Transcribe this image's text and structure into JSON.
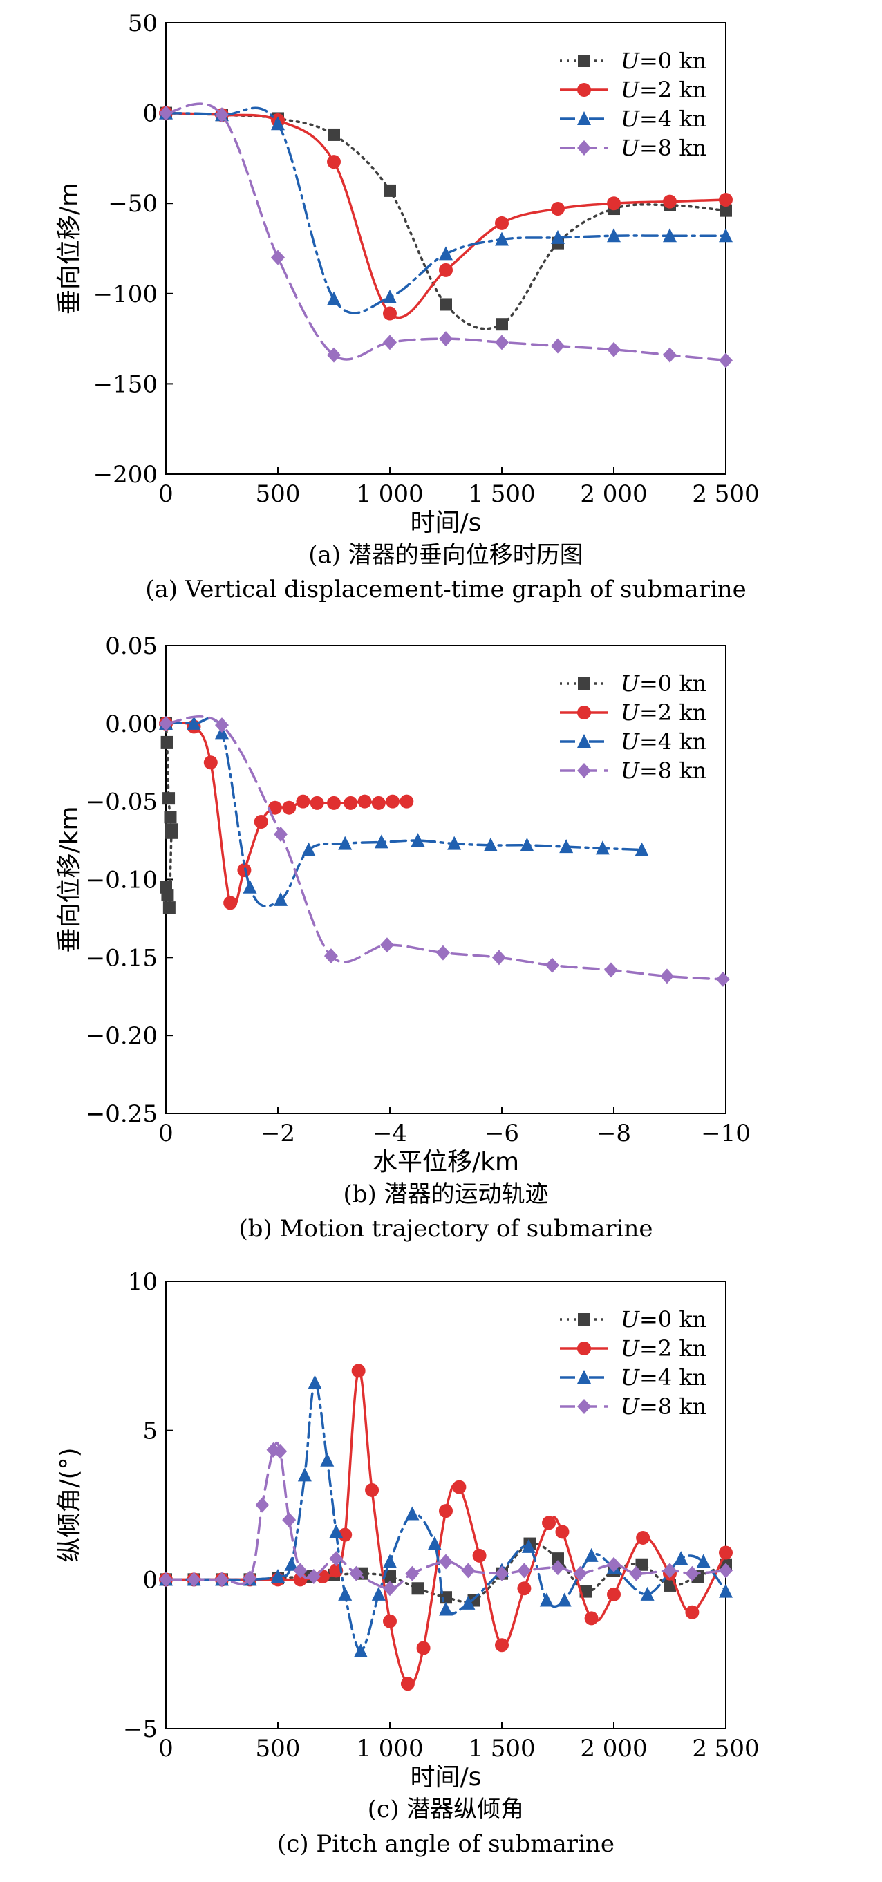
{
  "chart_data": [
    {
      "type": "line",
      "title": "",
      "caption_cn": "(a) 潜器的垂向位移时历图",
      "caption_en": "(a) Vertical displacement-time graph of submarine",
      "xlabel": "时间/s",
      "ylabel": "垂向位移/m",
      "xlim": [
        0,
        2500
      ],
      "ylim": [
        -200,
        50
      ],
      "xticks": [
        0,
        500,
        1000,
        1500,
        2000,
        2500
      ],
      "xtick_labels": [
        "0",
        "500",
        "1 000",
        "1 500",
        "2 000",
        "2 500"
      ],
      "yticks": [
        50,
        0,
        -50,
        -100,
        -150,
        -200
      ],
      "ytick_labels": [
        "50",
        "0",
        "−50",
        "−100",
        "−150",
        "−200"
      ],
      "legend_position": "top-right",
      "grid": false,
      "series": [
        {
          "name": "U=0 kn",
          "color": "#404040",
          "dash": "dot",
          "marker": "square",
          "x": [
            0,
            250,
            500,
            750,
            1000,
            1250,
            1500,
            1750,
            2000,
            2250,
            2500
          ],
          "y": [
            0,
            -1,
            -3,
            -12,
            -43,
            -106,
            -117,
            -72,
            -53,
            -51,
            -54
          ]
        },
        {
          "name": "U=2 kn",
          "color": "#e03030",
          "dash": "solid",
          "marker": "circle",
          "x": [
            0,
            250,
            500,
            750,
            1000,
            1250,
            1500,
            1750,
            2000,
            2250,
            2500
          ],
          "y": [
            0,
            -1,
            -4,
            -27,
            -111,
            -87,
            -61,
            -53,
            -50,
            -49,
            -48
          ]
        },
        {
          "name": "U=4 kn",
          "color": "#2060b0",
          "dash": "dashdot",
          "marker": "triangle",
          "x": [
            0,
            250,
            500,
            750,
            1000,
            1250,
            1500,
            1750,
            2000,
            2250,
            2500
          ],
          "y": [
            0,
            -1,
            -6,
            -103,
            -102,
            -78,
            -70,
            -69,
            -68,
            -68,
            -68
          ]
        },
        {
          "name": "U=8 kn",
          "color": "#9a70c0",
          "dash": "dash",
          "marker": "diamond",
          "x": [
            0,
            250,
            500,
            750,
            1000,
            1250,
            1500,
            1750,
            2000,
            2250,
            2500
          ],
          "y": [
            0,
            -1,
            -80,
            -134,
            -127,
            -125,
            -127,
            -129,
            -131,
            -134,
            -137
          ]
        }
      ]
    },
    {
      "type": "line",
      "title": "",
      "caption_cn": "(b) 潜器的运动轨迹",
      "caption_en": "(b) Motion trajectory of submarine",
      "xlabel": "水平位移/km",
      "ylabel": "垂向位移/km",
      "xlim": [
        0,
        -10
      ],
      "ylim": [
        -0.25,
        0.05
      ],
      "xticks": [
        0,
        -2,
        -4,
        -6,
        -8,
        -10
      ],
      "xtick_labels": [
        "0",
        "−2",
        "−4",
        "−6",
        "−8",
        "−10"
      ],
      "yticks": [
        0.05,
        0,
        -0.05,
        -0.1,
        -0.15,
        -0.2,
        -0.25
      ],
      "ytick_labels": [
        "0.05",
        "0.00",
        "−0.05",
        "−0.10",
        "−0.15",
        "−0.20",
        "−0.25"
      ],
      "legend_position": "top-right",
      "grid": false,
      "series": [
        {
          "name": "U=0 kn",
          "color": "#404040",
          "dash": "dot",
          "marker": "square",
          "x": [
            0,
            -0.02,
            -0.05,
            -0.08,
            -0.1,
            -0.1,
            -0.06,
            -0.03,
            0
          ],
          "y": [
            0,
            -0.012,
            -0.048,
            -0.06,
            -0.07,
            -0.068,
            -0.118,
            -0.11,
            -0.105
          ]
        },
        {
          "name": "U=2 kn",
          "color": "#e03030",
          "dash": "solid",
          "marker": "circle",
          "x": [
            0,
            -0.5,
            -0.8,
            -1.15,
            -1.4,
            -1.7,
            -1.95,
            -2.2,
            -2.45,
            -2.7,
            -3.0,
            -3.3,
            -3.55,
            -3.8,
            -4.05,
            -4.3
          ],
          "y": [
            0,
            -0.002,
            -0.025,
            -0.115,
            -0.094,
            -0.063,
            -0.054,
            -0.054,
            -0.05,
            -0.051,
            -0.051,
            -0.051,
            -0.05,
            -0.051,
            -0.05,
            -0.05
          ]
        },
        {
          "name": "U=4 kn",
          "color": "#2060b0",
          "dash": "dashdot",
          "marker": "triangle",
          "x": [
            0,
            -0.5,
            -1.0,
            -1.5,
            -2.05,
            -2.55,
            -3.2,
            -3.85,
            -4.5,
            -5.15,
            -5.8,
            -6.45,
            -7.15,
            -7.8,
            -8.5
          ],
          "y": [
            0,
            0,
            -0.006,
            -0.105,
            -0.113,
            -0.081,
            -0.077,
            -0.076,
            -0.075,
            -0.077,
            -0.078,
            -0.078,
            -0.079,
            -0.08,
            -0.081
          ]
        },
        {
          "name": "U=8 kn",
          "color": "#9a70c0",
          "dash": "dash",
          "marker": "diamond",
          "x": [
            0,
            -1.0,
            -2.05,
            -2.95,
            -3.95,
            -4.95,
            -5.95,
            -6.9,
            -7.95,
            -8.95,
            -9.95
          ],
          "y": [
            0,
            -0.001,
            -0.071,
            -0.149,
            -0.142,
            -0.147,
            -0.15,
            -0.155,
            -0.158,
            -0.162,
            -0.164
          ]
        }
      ]
    },
    {
      "type": "line",
      "title": "",
      "caption_cn": "(c) 潜器纵倾角",
      "caption_en": "(c) Pitch angle of submarine",
      "xlabel": "时间/s",
      "ylabel": "纵倾角/(°)",
      "xlim": [
        0,
        2500
      ],
      "ylim": [
        -5,
        10
      ],
      "xticks": [
        0,
        500,
        1000,
        1500,
        2000,
        2500
      ],
      "xtick_labels": [
        "0",
        "500",
        "1 000",
        "1 500",
        "2 000",
        "2 500"
      ],
      "yticks": [
        10,
        5,
        0,
        -5
      ],
      "ytick_labels": [
        "10",
        "5",
        "0",
        "−5"
      ],
      "legend_position": "top-right",
      "grid": false,
      "series": [
        {
          "name": "U=0 kn",
          "color": "#404040",
          "dash": "dot",
          "marker": "square",
          "x": [
            0,
            125,
            250,
            375,
            500,
            625,
            750,
            875,
            1000,
            1125,
            1250,
            1375,
            1500,
            1625,
            1750,
            1875,
            2000,
            2125,
            2250,
            2375,
            2500
          ],
          "y": [
            0,
            0,
            0,
            0,
            0.05,
            0.1,
            0.15,
            0.2,
            0.1,
            -0.3,
            -0.6,
            -0.7,
            0.2,
            1.2,
            0.7,
            -0.4,
            0.3,
            0.5,
            -0.2,
            0.1,
            0.5
          ]
        },
        {
          "name": "U=2 kn",
          "color": "#e03030",
          "dash": "solid",
          "marker": "circle",
          "x": [
            0,
            125,
            250,
            375,
            500,
            600,
            700,
            760,
            800,
            860,
            920,
            1000,
            1080,
            1150,
            1250,
            1310,
            1400,
            1500,
            1600,
            1710,
            1770,
            1900,
            2000,
            2130,
            2250,
            2350,
            2500
          ],
          "y": [
            0,
            0,
            0,
            0,
            0,
            0,
            0.1,
            0.3,
            1.5,
            7.0,
            3.0,
            -1.4,
            -3.5,
            -2.3,
            2.3,
            3.1,
            0.8,
            -2.2,
            -0.3,
            1.9,
            1.6,
            -1.3,
            -0.5,
            1.4,
            0.2,
            -1.1,
            0.9
          ]
        },
        {
          "name": "U=4 kn",
          "color": "#2060b0",
          "dash": "dashdot",
          "marker": "triangle",
          "x": [
            0,
            125,
            250,
            375,
            500,
            560,
            620,
            665,
            720,
            760,
            800,
            870,
            950,
            1000,
            1100,
            1200,
            1250,
            1350,
            1500,
            1620,
            1700,
            1780,
            1900,
            2000,
            2150,
            2300,
            2400,
            2500
          ],
          "y": [
            0,
            0,
            0,
            0,
            0.1,
            0.5,
            3.5,
            6.6,
            4.0,
            1.6,
            -0.5,
            -2.4,
            -0.5,
            0.6,
            2.2,
            1.2,
            -1.0,
            -0.8,
            0.3,
            1.1,
            -0.7,
            -0.7,
            0.8,
            0.4,
            -0.5,
            0.7,
            0.6,
            -0.4
          ]
        },
        {
          "name": "U=8 kn",
          "color": "#9a70c0",
          "dash": "dash",
          "marker": "diamond",
          "x": [
            0,
            125,
            250,
            375,
            430,
            480,
            510,
            550,
            600,
            660,
            760,
            850,
            1000,
            1100,
            1250,
            1350,
            1500,
            1600,
            1750,
            1850,
            2000,
            2100,
            2250,
            2350,
            2500
          ],
          "y": [
            0,
            0,
            0,
            0.05,
            2.5,
            4.35,
            4.3,
            2.0,
            0.3,
            0.1,
            0.7,
            0.2,
            -0.3,
            0.2,
            0.6,
            0.3,
            0.2,
            0.3,
            0.4,
            0.2,
            0.5,
            0.2,
            0.3,
            0.2,
            0.3
          ]
        }
      ]
    }
  ]
}
